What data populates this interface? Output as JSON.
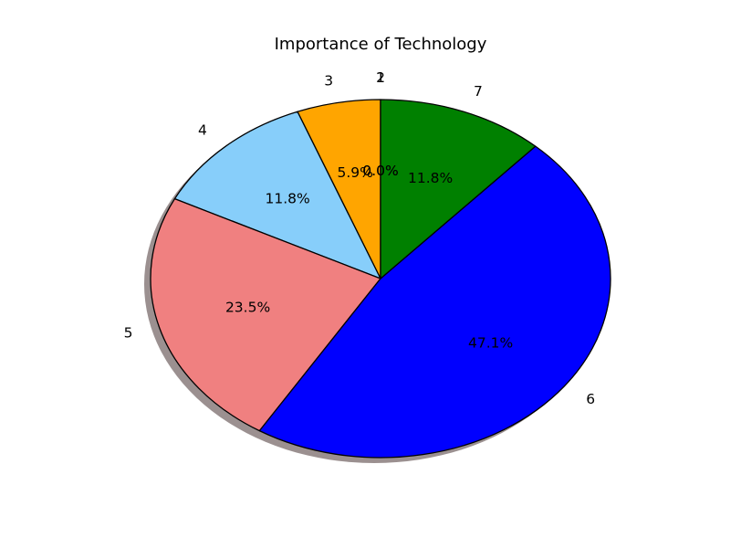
{
  "chart_data": {
    "type": "pie",
    "title": "Importance of Technology",
    "labels": [
      "1",
      "2",
      "3",
      "4",
      "5",
      "6",
      "7"
    ],
    "values": [
      0,
      0,
      1,
      2,
      4,
      8,
      2
    ],
    "percent_labels": [
      "0.0%",
      "0.0%",
      "5.9%",
      "11.8%",
      "23.5%",
      "47.1%",
      "11.8%"
    ],
    "colors": [
      "#ffd700",
      "#ff0000",
      "#ffa500",
      "#87cefa",
      "#f08080",
      "#0000ff",
      "#008000"
    ],
    "start_angle_deg": 90,
    "direction": "counterclockwise",
    "shadow": true,
    "edgecolor": "#000000"
  }
}
